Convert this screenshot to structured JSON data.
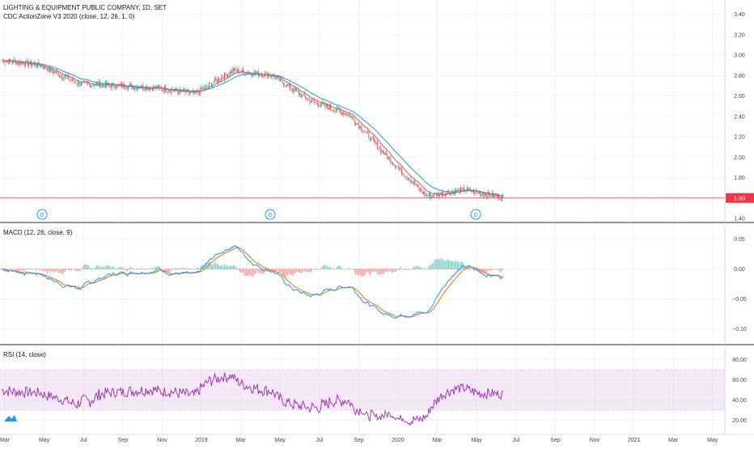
{
  "header": {
    "symbol_title": "LIGHTING & EQUIPMENT PUBLIC COMPANY, 1D, SET",
    "indicator": "CDC ActionZone V3 2020 (close, 12, 26, 1, 0)"
  },
  "price_pane": {
    "y_ticks": [
      "3.40",
      "3.20",
      "3.00",
      "2.80",
      "2.60",
      "2.40",
      "2.20",
      "2.00",
      "1.80",
      "1.60",
      "1.40"
    ],
    "y_range": [
      1.4,
      3.5
    ],
    "last_price_label": "1.60",
    "last_price": 1.6,
    "dividend_marker": "D"
  },
  "macd_pane": {
    "title": "MACD (12, 26, close, 9)",
    "y_ticks": [
      "0.05",
      "0.00",
      "−0.05",
      "−0.10"
    ]
  },
  "rsi_pane": {
    "title": "RSI (14, close)",
    "y_ticks": [
      "80.00",
      "60.00",
      "40.00",
      "20.00"
    ]
  },
  "time_axis": {
    "labels": [
      "Mar",
      "May",
      "Jul",
      "Sep",
      "Nov",
      "2019",
      "Mar",
      "May",
      "Jul",
      "Sep",
      "2020",
      "Mar",
      "May",
      "Jul",
      "Sep",
      "Nov",
      "2021",
      "Mar",
      "May"
    ]
  },
  "colors": {
    "up": "#26a69a",
    "down": "#ef5350",
    "ema_fast": "#ef5350",
    "ema_slow": "#2196f3",
    "macd_line": "#2196f3",
    "signal_line": "#ff6d00",
    "rsi_line": "#9c27b0",
    "rsi_band": "#e9d5f7",
    "price_line": "#f23645",
    "grid": "#f0f3fa",
    "brand": "#2196f3"
  },
  "chart_data": [
    {
      "type": "candlestick",
      "title": "LIGHTING & EQUIPMENT PUBLIC COMPANY, 1D, SET",
      "x_dates": [
        "2018-03",
        "2018-05",
        "2018-07",
        "2018-09",
        "2018-11",
        "2019-01",
        "2019-03",
        "2019-05",
        "2019-07",
        "2019-09",
        "2020-01",
        "2020-03",
        "2020-05",
        "2020-06"
      ],
      "close_approx": [
        2.95,
        2.9,
        2.72,
        2.7,
        2.68,
        2.62,
        2.85,
        2.8,
        2.55,
        2.42,
        2.0,
        1.62,
        1.68,
        1.6
      ],
      "ylim": [
        1.4,
        3.5
      ],
      "last_price": 1.6,
      "dividend_markers": [
        "2018-05",
        "2019-05",
        "2020-04"
      ]
    },
    {
      "type": "line",
      "title": "MACD (12, 26, close, 9)",
      "series": [
        {
          "name": "MACD"
        },
        {
          "name": "Signal"
        },
        {
          "name": "Histogram"
        }
      ],
      "ylim": [
        -0.12,
        0.07
      ]
    },
    {
      "type": "line",
      "title": "RSI (14, close)",
      "band": [
        30,
        70
      ],
      "ylim": [
        10,
        90
      ]
    }
  ]
}
